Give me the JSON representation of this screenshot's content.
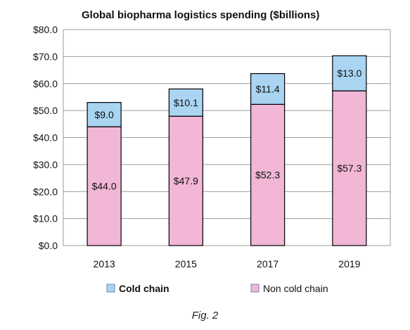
{
  "caption": "Fig. 2",
  "colors": {
    "cold_chain": "#a9d4f2",
    "non_cold_chain": "#f2b6d6",
    "bar_stroke": "#000000",
    "grid": "#9a9a9a",
    "legend_border": "#6a8ab0"
  },
  "chart_data": {
    "type": "bar",
    "stacked": true,
    "title": "Global biopharma logistics spending ($billions)",
    "categories": [
      "2013",
      "2015",
      "2017",
      "2019"
    ],
    "series": [
      {
        "name": "Non cold chain",
        "values": [
          44.0,
          47.9,
          52.3,
          57.3
        ],
        "labels": [
          "$44.0",
          "$47.9",
          "$52.3",
          "$57.3"
        ]
      },
      {
        "name": "Cold chain",
        "values": [
          9.0,
          10.1,
          11.4,
          13.0
        ],
        "labels": [
          "$9.0",
          "$10.1",
          "$11.4",
          "$13.0"
        ]
      }
    ],
    "ylim": [
      0,
      80
    ],
    "yticks": [
      0,
      10,
      20,
      30,
      40,
      50,
      60,
      70,
      80
    ],
    "ytick_labels": [
      "$0.0",
      "$10.0",
      "$20.0",
      "$30.0",
      "$40.0",
      "$50.0",
      "$60.0",
      "$70.0",
      "$80.0"
    ],
    "grid": true,
    "legend_position": "bottom",
    "legend": [
      "Cold chain",
      "Non cold chain"
    ]
  }
}
